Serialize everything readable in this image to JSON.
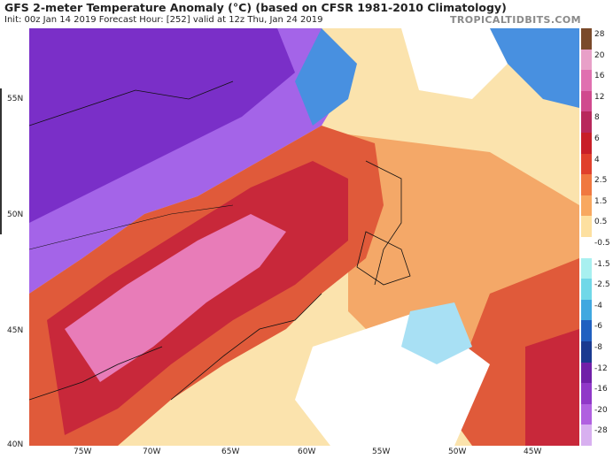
{
  "header": {
    "title": "GFS 2-meter Temperature Anomaly (°C) (based on CFSR 1981-2010 Climatology)",
    "subtitle": "Init: 00z Jan 14 2019   Forecast Hour: [252]   valid at 12z Thu, Jan 24 2019",
    "brand": "TROPICALTIDBITS.COM"
  },
  "map": {
    "lat_labels": [
      "55N",
      "50N",
      "45N",
      "40N"
    ],
    "lon_labels": [
      "75W",
      "70W",
      "65W",
      "60W",
      "55W",
      "50W",
      "45W"
    ]
  },
  "legend": {
    "ticks": [
      "28",
      "20",
      "16",
      "12",
      "8",
      "6",
      "4",
      "2.5",
      "1.5",
      "0.5",
      "-0.5",
      "-1.5",
      "-2.5",
      "-4",
      "-6",
      "-8",
      "-12",
      "-16",
      "-20",
      "-28"
    ],
    "colors": [
      "#7a4a2a",
      "#e8a0c8",
      "#e070b0",
      "#d04a8e",
      "#b8285c",
      "#c81e28",
      "#e0402c",
      "#f07840",
      "#f8a860",
      "#fde0a0",
      "#ffffff",
      "#a8f0f0",
      "#70d8e8",
      "#40a8e0",
      "#2060c0",
      "#1a3a90",
      "#7020a8",
      "#9038c8",
      "#b060e0",
      "#d8b0f0"
    ]
  },
  "colors": {
    "cold_deep": "#7a2fc8",
    "cold": "#a464e8",
    "cool": "#4890e0",
    "neutral": "#ffffff",
    "warm_light": "#fbe3ad",
    "warm": "#f4a868",
    "hot": "#e05a3a",
    "hotter": "#c8283a",
    "extreme": "#e87cb8"
  }
}
